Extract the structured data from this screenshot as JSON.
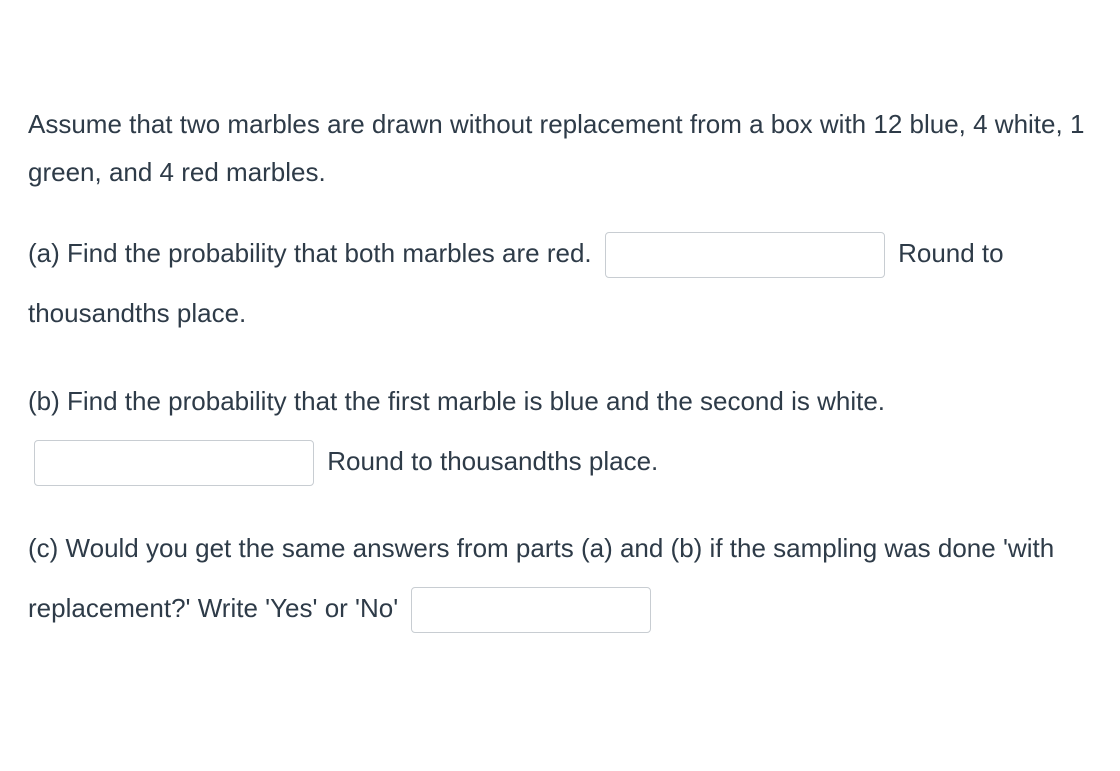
{
  "intro": "Assume that two marbles are drawn without replacement from a box with 12 blue, 4 white, 1 green, and 4 red marbles.",
  "parts": {
    "a": {
      "before_input": "(a) Find the probability that both marbles are red. ",
      "after_input": " Round to thousandths place."
    },
    "b": {
      "before_input": "(b) Find the probability that the first marble is blue and the second is white. ",
      "after_input": " Round to thousandths place."
    },
    "c": {
      "before_input": "(c) Would you get the same answers from parts (a) and (b) if the sampling was done 'with replacement?' Write 'Yes' or 'No' ",
      "after_input": ""
    }
  },
  "colors": {
    "text": "#2e3b48",
    "input_border": "#c8cdd2",
    "background": "#ffffff"
  },
  "typography": {
    "font_size_pt": 20,
    "line_height": 1.85,
    "font_family": "Segoe UI / system sans-serif"
  }
}
